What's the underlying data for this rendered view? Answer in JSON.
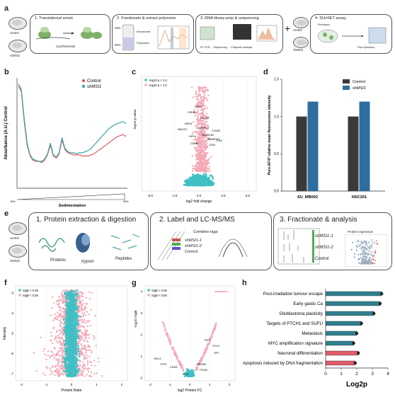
{
  "panels": {
    "a": {
      "letter": "a",
      "samples": [
        "control",
        "shMSI1"
      ],
      "steps": [
        {
          "title": "1. Translational arrest",
          "note": "Cycloheximide"
        },
        {
          "title": "2. Fractionate & extract polysome",
          "labels": [
            "10%",
            "50%",
            "Monosomes",
            "Polysomes"
          ]
        },
        {
          "title": "3. RNA library prep & sequencing",
          "flow": [
            "RT PCR",
            "Sequencing",
            "Polysome analysis"
          ]
        },
        {
          "title": "4. SUnSET assay",
          "labels": [
            "Puromycin",
            "Flow cytometry"
          ]
        }
      ],
      "plus": "+"
    },
    "b": {
      "letter": "b"
    },
    "c": {
      "letter": "c"
    },
    "d": {
      "letter": "d"
    },
    "e": {
      "letter": "e",
      "samples": [
        "control",
        "shMSI1"
      ],
      "steps": [
        {
          "title": "1. Protein extraction & digestion",
          "labels": [
            "Proteins",
            "trypsin",
            "Peptides"
          ]
        },
        {
          "title": "2. Label and LC-MS/MS",
          "labels": [
            "Combine tags",
            "shMSI1-1",
            "shMSI1-2",
            "Control"
          ]
        },
        {
          "title": "3. Fractionate & analysis",
          "labels": [
            "shMSI1-1",
            "shMSI1-2",
            "Control",
            "Protein expression"
          ]
        }
      ]
    },
    "f": {
      "letter": "f"
    },
    "g": {
      "letter": "g"
    },
    "h": {
      "letter": "h"
    }
  },
  "chart_data": [
    {
      "id": "b",
      "type": "line",
      "xlabel": "Sedimentation",
      "ylabel": "Absorbance (A.U.) Control",
      "gradient_labels": [
        "10%",
        "50%"
      ],
      "series": [
        {
          "name": "Control",
          "color": "#e05a6a",
          "y": [
            0.95,
            0.9,
            0.62,
            0.4,
            0.3,
            0.26,
            0.25,
            0.25,
            0.24,
            0.26,
            0.31,
            0.4,
            0.3,
            0.28,
            0.32,
            0.45,
            0.36,
            0.33,
            0.32,
            0.31,
            0.31,
            0.31,
            0.3,
            0.3,
            0.3,
            0.31,
            0.32,
            0.34,
            0.36,
            0.38,
            0.4,
            0.42,
            0.44,
            0.46,
            0.48,
            0.49,
            0.5,
            0.48
          ]
        },
        {
          "name": "shMSI1",
          "color": "#3aa7a7",
          "y": [
            0.97,
            0.92,
            0.65,
            0.42,
            0.31,
            0.27,
            0.26,
            0.25,
            0.25,
            0.27,
            0.32,
            0.42,
            0.31,
            0.29,
            0.33,
            0.47,
            0.37,
            0.34,
            0.33,
            0.33,
            0.32,
            0.33,
            0.33,
            0.34,
            0.35,
            0.37,
            0.4,
            0.43,
            0.46,
            0.49,
            0.52,
            0.55,
            0.57,
            0.59,
            0.6,
            0.61,
            0.62,
            0.6
          ]
        }
      ]
    },
    {
      "id": "c",
      "type": "scatter",
      "xlabel": "log2 fold change",
      "ylabel": "-log10 p-value",
      "xticks": [
        "-5.0",
        "-2.5",
        "0.0",
        "2.5",
        "5.0"
      ],
      "legend": [
        "-log10 p < 1.0",
        "-log10 p > 1.0"
      ],
      "colors": [
        "#40c0c4",
        "#f4a9b7"
      ],
      "gene_labels": [
        "NPM1",
        "CREB1",
        "KMT2A",
        "MSH6",
        "MALAT1",
        "MAP3K13",
        "CCND3",
        "SMARCB1",
        "SMARCE1",
        "HIF1A",
        "TP53",
        "CDKN1",
        "CD44"
      ]
    },
    {
      "id": "d",
      "type": "bar",
      "categories": [
        "SU_MB002",
        "NSC201"
      ],
      "ylabel": "Puro-AF47 relative mean fluorescence intensity",
      "ylim": [
        0,
        1.5
      ],
      "yticks": [
        "0.0",
        "0.5",
        "1.0",
        "1.5"
      ],
      "series": [
        {
          "name": "Control",
          "color": "#3a3a3a",
          "values": [
            1.0,
            1.0
          ]
        },
        {
          "name": "shMSI1",
          "color": "#2f6da0",
          "values": [
            1.2,
            1.2
          ]
        }
      ]
    },
    {
      "id": "f",
      "type": "scatter",
      "xlabel": "Protein Ratio",
      "ylabel": "Intensity",
      "xticks": [
        "-2",
        "-1",
        "0",
        "1",
        "2"
      ],
      "yticks": [
        "-3",
        "-4",
        "-5",
        "-6",
        "-7"
      ],
      "legend": [
        "SigB > 0.05",
        "SigB < 0.05"
      ],
      "colors": [
        "#40c0c4",
        "#f4a9b7"
      ]
    },
    {
      "id": "g",
      "type": "scatter",
      "xlabel": "log2 Protein FC",
      "ylabel": "-log10 SigB",
      "xticks": [
        "-2",
        "-1",
        "0",
        "1",
        "2"
      ],
      "yticks": [
        "0",
        "1",
        "2",
        "3",
        "4"
      ],
      "legend": [
        "SigB > 0.05",
        "SigB < 0.05"
      ],
      "colors": [
        "#40c0c4",
        "#f4a9b7"
      ],
      "gene_labels": [
        "TOP1",
        "CYLD",
        "XPC",
        "BCL6",
        "TCF3",
        "CDK8",
        "PRDM2",
        "ITGAV",
        "MYC"
      ]
    },
    {
      "id": "h",
      "type": "bar",
      "orientation": "horizontal",
      "xlabel": "Log2p",
      "xlim": [
        0,
        4
      ],
      "xticks": [
        "0",
        "1",
        "2",
        "3",
        "4"
      ],
      "categories": [
        "Post-irradiation tumour escape",
        "Early gastic Ca",
        "Glioblastoma plasticity",
        "Targets of PTCH1 and SUFU",
        "Metastasis",
        "MYC amplification signature",
        "Neuronal differentiation",
        "Apoptosis induced by DNA fragmentation"
      ],
      "values": [
        3.6,
        3.5,
        3.1,
        2.3,
        2.0,
        1.8,
        2.1,
        1.9
      ],
      "colors": [
        "#2f7f8f",
        "#2f7f8f",
        "#2f7f8f",
        "#2f7f8f",
        "#2f7f8f",
        "#2f7f8f",
        "#e05a6a",
        "#e05a6a"
      ]
    }
  ]
}
